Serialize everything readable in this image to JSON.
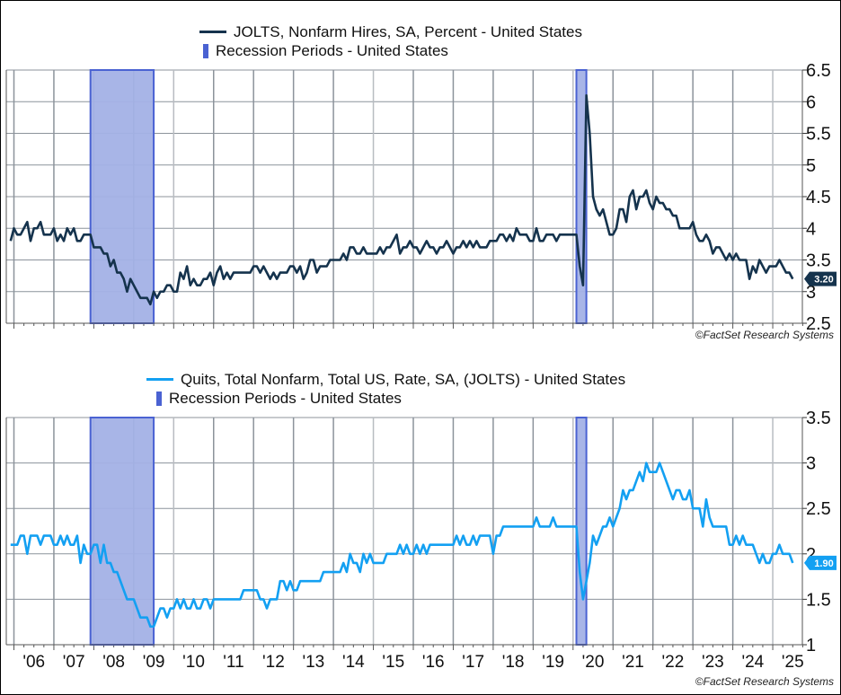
{
  "colors": {
    "hires": "#15334d",
    "quits": "#13a0f2",
    "recession_fill": "#a3b1e6",
    "recession_stroke": "#4a62d2",
    "grid": "#8c939b"
  },
  "copyright": "©FactSet Research Systems",
  "chart_data": [
    {
      "type": "line",
      "legend": [
        {
          "label": "JOLTS, Nonfarm Hires, SA, Percent - United States",
          "kind": "line"
        },
        {
          "label": "Recession Periods - United States",
          "kind": "bar"
        }
      ],
      "ylim": [
        2.5,
        6.5
      ],
      "yticks": [
        "2.5",
        "3",
        "3.5",
        "4",
        "4.5",
        "5",
        "5.5",
        "6",
        "6.5"
      ],
      "axis_side": "right",
      "grid": true,
      "last_value_label": "3.20",
      "recessions": [
        [
          "2007-12",
          "2009-06"
        ],
        [
          "2020-02",
          "2020-04"
        ]
      ],
      "series": {
        "name": "JOLTS, Nonfarm Hires, SA, Percent - United States",
        "monthly_by_year": {
          "2005": [
            null,
            null,
            null,
            null,
            null,
            null,
            null,
            null,
            null,
            null,
            null,
            3.8
          ],
          "2006": [
            4.0,
            3.9,
            3.9,
            4.0,
            4.1,
            3.8,
            4.0,
            4.0,
            4.1,
            3.9,
            3.9,
            3.9
          ],
          "2007": [
            4.0,
            3.8,
            3.9,
            3.8,
            4.0,
            3.9,
            4.0,
            3.8,
            3.8,
            3.9,
            3.9,
            3.9
          ],
          "2008": [
            3.7,
            3.7,
            3.7,
            3.6,
            3.6,
            3.4,
            3.5,
            3.3,
            3.3,
            3.2,
            3.0,
            3.2
          ],
          "2009": [
            3.1,
            3.0,
            2.9,
            2.9,
            2.9,
            2.8,
            3.0,
            2.9,
            3.0,
            3.0,
            3.1,
            3.1
          ],
          "2010": [
            3.0,
            3.0,
            3.3,
            3.2,
            3.4,
            3.1,
            3.2,
            3.1,
            3.1,
            3.2,
            3.2,
            3.3
          ],
          "2011": [
            3.1,
            3.3,
            3.4,
            3.2,
            3.3,
            3.2,
            3.3,
            3.3,
            3.3,
            3.3,
            3.3,
            3.3
          ],
          "2012": [
            3.4,
            3.4,
            3.3,
            3.4,
            3.3,
            3.2,
            3.3,
            3.2,
            3.3,
            3.3,
            3.3,
            3.4
          ],
          "2013": [
            3.4,
            3.3,
            3.4,
            3.2,
            3.3,
            3.5,
            3.5,
            3.3,
            3.4,
            3.4,
            3.4,
            3.5
          ],
          "2014": [
            3.5,
            3.5,
            3.5,
            3.6,
            3.5,
            3.7,
            3.7,
            3.6,
            3.6,
            3.7,
            3.6,
            3.6
          ],
          "2015": [
            3.6,
            3.6,
            3.7,
            3.6,
            3.7,
            3.7,
            3.8,
            3.9,
            3.6,
            3.7,
            3.7,
            3.8
          ],
          "2016": [
            3.7,
            3.7,
            3.6,
            3.7,
            3.8,
            3.7,
            3.7,
            3.6,
            3.7,
            3.7,
            3.8,
            3.7
          ],
          "2017": [
            3.6,
            3.7,
            3.7,
            3.8,
            3.7,
            3.8,
            3.7,
            3.8,
            3.7,
            3.7,
            3.7,
            3.8
          ],
          "2018": [
            3.8,
            3.8,
            3.9,
            3.9,
            3.8,
            3.9,
            3.8,
            4.0,
            3.9,
            3.9,
            3.9,
            3.8
          ],
          "2019": [
            3.8,
            4.0,
            3.8,
            3.8,
            3.9,
            3.9,
            3.9,
            3.8,
            3.9,
            3.9,
            3.9,
            3.9
          ],
          "2020": [
            3.9,
            3.9,
            3.4,
            3.1,
            6.1,
            5.5,
            4.5,
            4.3,
            4.2,
            4.3,
            4.1,
            3.9
          ],
          "2021": [
            3.9,
            4.0,
            4.3,
            4.3,
            4.1,
            4.5,
            4.6,
            4.3,
            4.5,
            4.5,
            4.6,
            4.4
          ],
          "2022": [
            4.3,
            4.5,
            4.4,
            4.4,
            4.3,
            4.3,
            4.2,
            4.2,
            4.0,
            4.0,
            4.0,
            4.0
          ],
          "2023": [
            4.1,
            3.9,
            3.8,
            3.8,
            3.9,
            3.8,
            3.6,
            3.7,
            3.7,
            3.6,
            3.5,
            3.6
          ],
          "2024": [
            3.5,
            3.6,
            3.5,
            3.5,
            3.5,
            3.2,
            3.4,
            3.3,
            3.5,
            3.4,
            3.3,
            3.4
          ],
          "2025": [
            3.4,
            3.4,
            3.5,
            3.4,
            3.3,
            3.3,
            3.2
          ]
        }
      }
    },
    {
      "type": "line",
      "legend": [
        {
          "label": "Quits, Total Nonfarm, Total US, Rate, SA, (JOLTS) - United States",
          "kind": "line"
        },
        {
          "label": "Recession Periods - United States",
          "kind": "bar"
        }
      ],
      "ylim": [
        1,
        3.5
      ],
      "yticks": [
        "1",
        "1.5",
        "2",
        "2.5",
        "3",
        "3.5"
      ],
      "axis_side": "right",
      "grid": true,
      "last_value_label": "1.90",
      "xticks": [
        "'06",
        "'07",
        "'08",
        "'09",
        "'10",
        "'11",
        "'12",
        "'13",
        "'14",
        "'15",
        "'16",
        "'17",
        "'18",
        "'19",
        "'20",
        "'21",
        "'22",
        "'23",
        "'24",
        "'25"
      ],
      "recessions": [
        [
          "2007-12",
          "2009-06"
        ],
        [
          "2020-02",
          "2020-04"
        ]
      ],
      "series": {
        "name": "Quits, Total Nonfarm, Total US, Rate, SA, (JOLTS) - United States",
        "monthly_by_year": {
          "2005": [
            null,
            null,
            null,
            null,
            null,
            null,
            null,
            null,
            null,
            null,
            null,
            2.1
          ],
          "2006": [
            2.1,
            2.1,
            2.2,
            2.2,
            2.0,
            2.2,
            2.2,
            2.2,
            2.1,
            2.2,
            2.2,
            2.2
          ],
          "2007": [
            2.1,
            2.1,
            2.2,
            2.1,
            2.2,
            2.1,
            2.1,
            2.2,
            1.9,
            2.1,
            2.0,
            2.0
          ],
          "2008": [
            2.1,
            2.1,
            1.9,
            2.1,
            1.9,
            1.9,
            1.8,
            1.8,
            1.7,
            1.6,
            1.5,
            1.5
          ],
          "2009": [
            1.5,
            1.4,
            1.3,
            1.3,
            1.3,
            1.2,
            1.2,
            1.3,
            1.4,
            1.4,
            1.3,
            1.4
          ],
          "2010": [
            1.4,
            1.5,
            1.4,
            1.5,
            1.4,
            1.4,
            1.5,
            1.4,
            1.4,
            1.5,
            1.5,
            1.4
          ],
          "2011": [
            1.5,
            1.5,
            1.5,
            1.5,
            1.5,
            1.5,
            1.5,
            1.5,
            1.5,
            1.6,
            1.6,
            1.6
          ],
          "2012": [
            1.6,
            1.6,
            1.5,
            1.5,
            1.4,
            1.5,
            1.5,
            1.5,
            1.7,
            1.7,
            1.6,
            1.7
          ],
          "2013": [
            1.6,
            1.6,
            1.7,
            1.7,
            1.7,
            1.7,
            1.7,
            1.7,
            1.7,
            1.8,
            1.8,
            1.8
          ],
          "2014": [
            1.8,
            1.8,
            1.8,
            1.9,
            1.8,
            2.0,
            1.9,
            1.9,
            1.8,
            2.0,
            1.9,
            2.0
          ],
          "2015": [
            1.9,
            1.9,
            1.9,
            1.9,
            2.0,
            2.0,
            2.0,
            2.0,
            2.1,
            2.0,
            2.1,
            2.0
          ],
          "2016": [
            2.0,
            2.1,
            2.0,
            2.1,
            2.0,
            2.1,
            2.1,
            2.1,
            2.1,
            2.1,
            2.1,
            2.1
          ],
          "2017": [
            2.1,
            2.2,
            2.1,
            2.2,
            2.1,
            2.1,
            2.2,
            2.1,
            2.2,
            2.2,
            2.2,
            2.2
          ],
          "2018": [
            2.0,
            2.2,
            2.2,
            2.3,
            2.3,
            2.3,
            2.3,
            2.3,
            2.3,
            2.3,
            2.3,
            2.3
          ],
          "2019": [
            2.3,
            2.4,
            2.3,
            2.3,
            2.3,
            2.3,
            2.4,
            2.3,
            2.3,
            2.3,
            2.3,
            2.3
          ],
          "2020": [
            2.3,
            2.3,
            1.8,
            1.5,
            1.7,
            1.9,
            2.2,
            2.1,
            2.2,
            2.3,
            2.3,
            2.4
          ],
          "2021": [
            2.3,
            2.4,
            2.5,
            2.7,
            2.6,
            2.7,
            2.7,
            2.8,
            2.9,
            2.8,
            3.0,
            2.9
          ],
          "2022": [
            2.9,
            2.9,
            3.0,
            2.9,
            2.8,
            2.7,
            2.6,
            2.7,
            2.7,
            2.6,
            2.6,
            2.7
          ],
          "2023": [
            2.5,
            2.5,
            2.5,
            2.3,
            2.6,
            2.4,
            2.3,
            2.3,
            2.3,
            2.3,
            2.3,
            2.1
          ],
          "2024": [
            2.1,
            2.2,
            2.1,
            2.2,
            2.1,
            2.1,
            2.1,
            2.0,
            1.9,
            2.0,
            1.9,
            1.9
          ],
          "2025": [
            2.0,
            2.0,
            2.1,
            2.0,
            2.0,
            2.0,
            1.9
          ]
        }
      }
    }
  ]
}
